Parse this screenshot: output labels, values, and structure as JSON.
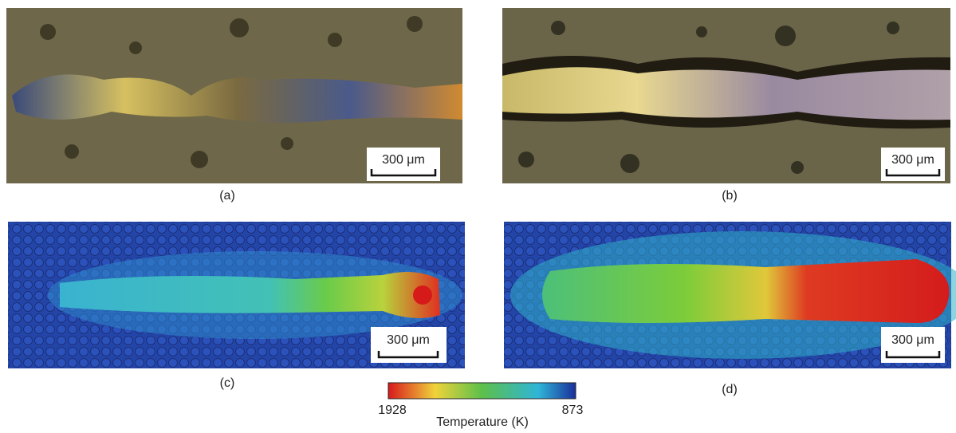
{
  "panels": [
    {
      "label": "(a)",
      "scale_bar": "300 μm"
    },
    {
      "label": "(b)",
      "scale_bar": "300 μm"
    },
    {
      "label": "(c)",
      "scale_bar": "300 μm"
    },
    {
      "label": "(d)",
      "scale_bar": "300 μm"
    }
  ],
  "colorbar": {
    "max": 1928,
    "min": 873,
    "title": "Temperature (K)"
  }
}
